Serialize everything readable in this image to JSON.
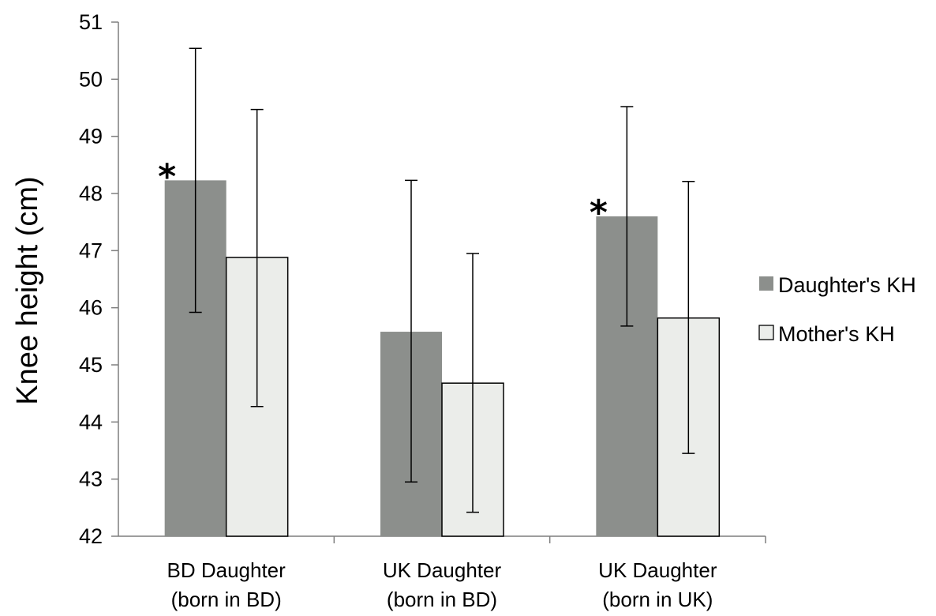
{
  "chart_data": {
    "type": "bar",
    "ylabel": "Knee height (cm)",
    "ylim": [
      42,
      51
    ],
    "yticks": [
      "42",
      "43",
      "44",
      "45",
      "46",
      "47",
      "48",
      "49",
      "50",
      "51"
    ],
    "categories": [
      [
        "BD Daughter",
        "(born in BD)"
      ],
      [
        "UK Daughter",
        "(born in BD)"
      ],
      [
        "UK Daughter",
        "(born in UK)"
      ]
    ],
    "series": [
      {
        "name": "Daughter's KH",
        "color": "#8c8f8c",
        "values": [
          48.23,
          45.58,
          47.6
        ],
        "error_low": [
          45.92,
          42.95,
          45.68
        ],
        "error_high": [
          50.54,
          48.23,
          49.52
        ]
      },
      {
        "name": "Mother's KH",
        "color": "#ebedea",
        "values": [
          46.88,
          44.68,
          45.82
        ],
        "error_low": [
          44.27,
          42.42,
          43.45
        ],
        "error_high": [
          49.47,
          46.95,
          48.21
        ]
      }
    ],
    "annotations": [
      {
        "text": "*",
        "category_index": 0,
        "series_index": 0
      },
      {
        "text": "*",
        "category_index": 2,
        "series_index": 0
      }
    ],
    "grid": false,
    "legend_position": "right"
  }
}
